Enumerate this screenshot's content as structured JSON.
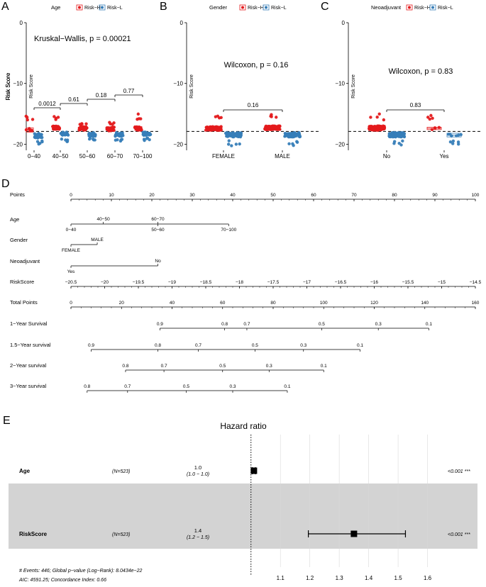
{
  "colors": {
    "risk_h": "#E41A1C",
    "risk_l": "#377EB8",
    "gray_band": "#D3D3D3"
  },
  "panel_labels": [
    "A",
    "B",
    "C",
    "D",
    "E"
  ],
  "chart_data": [
    {
      "type": "scatter",
      "panel": "A",
      "legend_title": "Age",
      "legend": [
        "Risk−H",
        "Risk−L"
      ],
      "ylabel": "Risk Score",
      "ylim": [
        -21,
        0
      ],
      "yticks": [
        0,
        -10,
        -20
      ],
      "ytick_labels": [
        "0",
        "−10",
        "−20"
      ],
      "categories": [
        "0−40",
        "40−50",
        "50−60",
        "60−70",
        "70−100"
      ],
      "series": [
        {
          "name": "Risk−H",
          "median": [
            -17.7,
            -17.3,
            -17.4,
            -17.5,
            -17.4
          ],
          "q1": [
            -18.0,
            -17.6,
            -17.7,
            -17.8,
            -17.7
          ],
          "q3": [
            -17.3,
            -17.0,
            -17.1,
            -17.2,
            -17.1
          ],
          "max": [
            -15.2,
            -15.0,
            -16.5,
            -16.4,
            -15.0
          ],
          "n": [
            10,
            30,
            40,
            35,
            30
          ]
        },
        {
          "name": "Risk−L",
          "median": [
            -18.6,
            -18.3,
            -18.4,
            -18.4,
            -18.3
          ],
          "q1": [
            -19.0,
            -18.6,
            -18.7,
            -18.7,
            -18.6
          ],
          "q3": [
            -18.2,
            -18.0,
            -18.1,
            -18.1,
            -18.0
          ],
          "min": [
            -20.0,
            -19.8,
            -19.5,
            -19.6,
            -19.5
          ],
          "n": [
            30,
            30,
            40,
            35,
            30
          ]
        }
      ],
      "stat_text": "Kruskal−Wallis, p = 0.00021",
      "comparisons": [
        "0.0012",
        "0.61",
        "0.18",
        "0.77"
      ],
      "cutoff": -17.9
    },
    {
      "type": "scatter",
      "panel": "B",
      "legend_title": "Gender",
      "legend": [
        "Risk−H",
        "Risk−L"
      ],
      "ylabel": "Risk Score",
      "ylim": [
        -21,
        0
      ],
      "yticks": [
        0,
        -10,
        -20
      ],
      "ytick_labels": [
        "0",
        "−10",
        "−20"
      ],
      "categories": [
        "FEMALE",
        "MALE"
      ],
      "series": [
        {
          "name": "Risk−H",
          "median": [
            -17.4,
            -17.3
          ],
          "q1": [
            -17.7,
            -17.6
          ],
          "q3": [
            -17.1,
            -17.0
          ],
          "max": [
            -15.0,
            -15.0
          ],
          "n": [
            70,
            70
          ]
        },
        {
          "name": "Risk−L",
          "median": [
            -18.4,
            -18.4
          ],
          "q1": [
            -18.8,
            -18.8
          ],
          "q3": [
            -18.1,
            -18.1
          ],
          "min": [
            -20.3,
            -20.3
          ],
          "n": [
            70,
            70
          ]
        }
      ],
      "stat_text": "Wilcoxon, p = 0.16",
      "comparisons": [
        "0.16"
      ],
      "cutoff": -17.9
    },
    {
      "type": "scatter",
      "panel": "C",
      "legend_title": "Neoadjuvant",
      "legend": [
        "Risk−H",
        "Risk−L"
      ],
      "ylabel": "Risk Score",
      "ylim": [
        -21,
        0
      ],
      "yticks": [
        0,
        -10,
        -20
      ],
      "ytick_labels": [
        "0",
        "−10",
        "−20"
      ],
      "categories": [
        "No",
        "Yes"
      ],
      "series": [
        {
          "name": "Risk−H",
          "median": [
            -17.3,
            -17.4
          ],
          "q1": [
            -17.7,
            -17.6
          ],
          "q3": [
            -17.0,
            -17.2
          ],
          "max": [
            -15.0,
            -15.2
          ],
          "n": [
            120,
            8
          ]
        },
        {
          "name": "Risk−L",
          "median": [
            -18.4,
            -18.5
          ],
          "q1": [
            -18.8,
            -18.8
          ],
          "q3": [
            -18.1,
            -18.2
          ],
          "min": [
            -20.2,
            -20.0
          ],
          "n": [
            120,
            12
          ]
        }
      ],
      "stat_text": "Wilcoxon, p = 0.83",
      "comparisons": [
        "0.83"
      ],
      "cutoff": -17.9
    },
    {
      "type": "nomogram",
      "panel": "D",
      "rows": [
        {
          "name": "Points",
          "kind": "scale",
          "min": 0,
          "max": 100,
          "labels": [
            [
              "0",
              0
            ],
            [
              "10",
              10
            ],
            [
              "20",
              20
            ],
            [
              "30",
              30
            ],
            [
              "40",
              40
            ],
            [
              "50",
              50
            ],
            [
              "60",
              60
            ],
            [
              "70",
              70
            ],
            [
              "80",
              80
            ],
            [
              "90",
              90
            ],
            [
              "100",
              100
            ]
          ]
        },
        {
          "name": "Age",
          "kind": "cat",
          "min": 0,
          "max": 39,
          "labels": [
            [
              "0−40",
              0,
              "b"
            ],
            [
              "40−50",
              8,
              "a"
            ],
            [
              "50−60",
              21.5,
              "b"
            ],
            [
              "60−70",
              21.5,
              "a"
            ],
            [
              "70−100",
              39,
              "b"
            ]
          ]
        },
        {
          "name": "Gender",
          "kind": "cat",
          "min": 0,
          "max": 6.5,
          "labels": [
            [
              "FEMALE",
              0,
              "b"
            ],
            [
              "MALE",
              6.5,
              "a"
            ]
          ]
        },
        {
          "name": "Neoadjuvant",
          "kind": "cat",
          "min": 0,
          "max": 21.5,
          "labels": [
            [
              "Yes",
              0,
              "b"
            ],
            [
              "No",
              21.5,
              "a"
            ]
          ]
        },
        {
          "name": "RiskScore",
          "kind": "scale",
          "min": 0,
          "max": 100,
          "labels": [
            [
              "−20.5",
              0
            ],
            [
              "−20",
              8.33
            ],
            [
              "−19.5",
              16.67
            ],
            [
              "−19",
              25
            ],
            [
              "−18.5",
              33.33
            ],
            [
              "−18",
              41.67
            ],
            [
              "−17.5",
              50
            ],
            [
              "−17",
              58.33
            ],
            [
              "−16.5",
              66.67
            ],
            [
              "−16",
              75
            ],
            [
              "−15.5",
              83.33
            ],
            [
              "−15",
              91.67
            ],
            [
              "−14.5",
              100
            ]
          ]
        },
        {
          "name": "Total Points",
          "kind": "scale",
          "min": 0,
          "max": 100,
          "labels": [
            [
              "0",
              0
            ],
            [
              "20",
              12.5
            ],
            [
              "40",
              25
            ],
            [
              "60",
              37.5
            ],
            [
              "80",
              50
            ],
            [
              "100",
              62.5
            ],
            [
              "120",
              75
            ],
            [
              "140",
              87.5
            ],
            [
              "160",
              100
            ]
          ]
        },
        {
          "name": "1−Year Survival",
          "kind": "scale",
          "min": 22,
          "max": 88.5,
          "labels": [
            [
              "0.9",
              22
            ],
            [
              "0.8",
              38
            ],
            [
              "0.7",
              43.5
            ],
            [
              "0.5",
              62
            ],
            [
              "0.3",
              76
            ],
            [
              "0.1",
              88.5
            ]
          ]
        },
        {
          "name": "1.5−Year survival",
          "kind": "scale",
          "min": 5,
          "max": 71.5,
          "labels": [
            [
              "0.9",
              5
            ],
            [
              "0.8",
              21.5
            ],
            [
              "0.7",
              31.5
            ],
            [
              "0.5",
              45.5
            ],
            [
              "0.3",
              57.5
            ],
            [
              "0.1",
              71.5
            ]
          ]
        },
        {
          "name": "2−Year survival",
          "kind": "scale",
          "min": 13.5,
          "max": 62.5,
          "labels": [
            [
              "0.8",
              13.5
            ],
            [
              "0.7",
              23
            ],
            [
              "0.5",
              37.5
            ],
            [
              "0.3",
              49
            ],
            [
              "0.1",
              62.5
            ]
          ]
        },
        {
          "name": "3−Year survival",
          "kind": "scale",
          "min": 4,
          "max": 53.5,
          "labels": [
            [
              "0.8",
              4
            ],
            [
              "0.7",
              14
            ],
            [
              "0.5",
              28.5
            ],
            [
              "0.3",
              40
            ],
            [
              "0.1",
              53.5
            ]
          ]
        }
      ]
    },
    {
      "type": "forest",
      "panel": "E",
      "title": "Hazard ratio",
      "xlim": [
        0.95,
        1.63
      ],
      "xticks": [
        "1.1",
        "1.2",
        "1.3",
        "1.4",
        "1.5",
        "1.6"
      ],
      "reference": 1.0,
      "rows": [
        {
          "variable": "Age",
          "n": "(N=523)",
          "hr": "1.0",
          "ci": "(1.0 − 1.0)",
          "estimate": 1.01,
          "lower": 1.005,
          "upper": 1.015,
          "p": "<0.001 ***",
          "shaded": false
        },
        {
          "variable": "RiskScore",
          "n": "(N=523)",
          "hr": "1.4",
          "ci": "(1.2 − 1.5)",
          "estimate": 1.35,
          "lower": 1.195,
          "upper": 1.525,
          "p": "<0.001 ***",
          "shaded": true
        }
      ],
      "footnote": [
        "# Events: 446; Global p−value (Log−Rank): 8.0434e−22",
        "AIC: 4591.25; Concordance Index: 0.66"
      ]
    }
  ]
}
